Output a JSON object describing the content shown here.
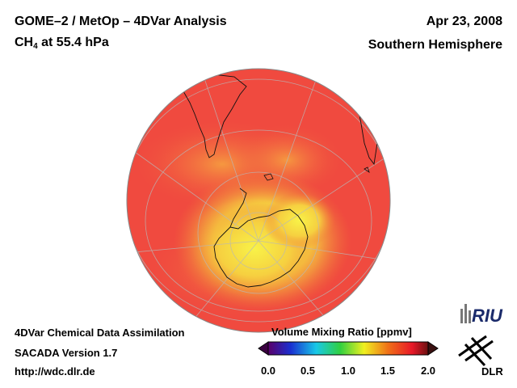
{
  "header": {
    "title": "GOME–2 / MetOp – 4DVar Analysis",
    "species_main": "CH",
    "species_sub": "4",
    "species_rest": " at 55.4 hPa",
    "date": "Apr 23, 2008",
    "hemisphere": "Southern Hemisphere"
  },
  "footer": {
    "line1": "4DVar Chemical Data Assimilation",
    "line2": "SACADA Version 1.7",
    "line3": "http://wdc.dlr.de"
  },
  "colorbar": {
    "title": "Volume Mixing Ratio [ppmv]",
    "ticks": [
      "0.0",
      "0.5",
      "1.0",
      "1.5",
      "2.0"
    ],
    "colors": [
      "#3a0040",
      "#1a2fd0",
      "#18c8e8",
      "#30d040",
      "#f0f020",
      "#f07018",
      "#e81828",
      "#4a1010"
    ]
  },
  "logos": {
    "riu": "RIU",
    "dlr": "DLR"
  },
  "map": {
    "projection": "orthographic",
    "center": "South Pole",
    "colors": {
      "background": "#f04040",
      "high": "#f8f040",
      "mid": "#f89030"
    }
  }
}
